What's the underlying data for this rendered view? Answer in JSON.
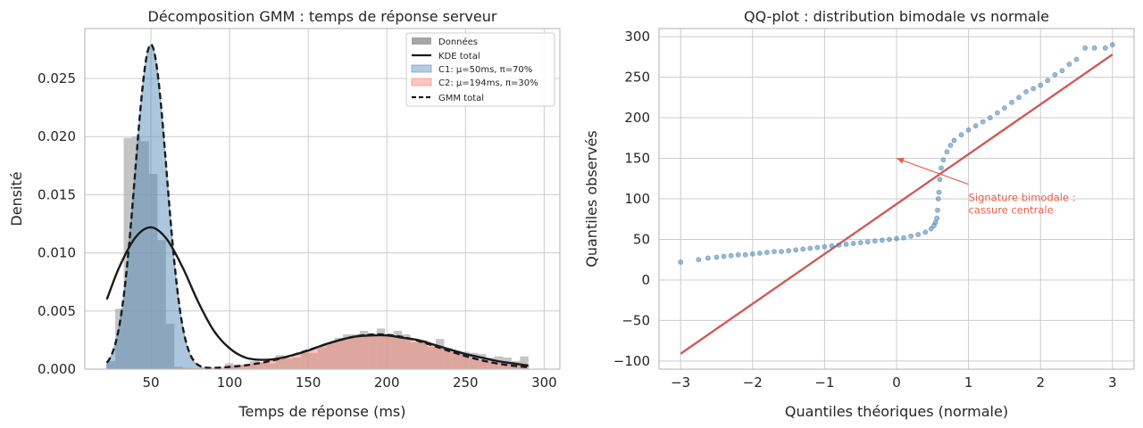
{
  "chart_data": [
    {
      "type": "histogram+line",
      "title": "Décomposition GMM : temps de réponse serveur",
      "xlabel": "Temps de réponse (ms)",
      "ylabel": "Densité",
      "xlim": [
        8,
        310
      ],
      "ylim": [
        0,
        0.0293
      ],
      "xticks": [
        50,
        100,
        150,
        200,
        250,
        300
      ],
      "yticks": [
        0.0,
        0.005,
        0.01,
        0.015,
        0.02,
        0.025
      ],
      "ytick_labels": [
        "0.000",
        "0.005",
        "0.010",
        "0.015",
        "0.020",
        "0.025"
      ],
      "legend": {
        "position": "upper right",
        "entries": [
          {
            "label": "Données",
            "kind": "patch",
            "color": "#a6a6a6"
          },
          {
            "label": "KDE total",
            "kind": "line",
            "color": "#1a1a1a"
          },
          {
            "label": "C1: μ=50ms, π=70%",
            "kind": "patch",
            "color": "#4682b4"
          },
          {
            "label": "C2: μ=194ms, π=30%",
            "kind": "patch",
            "color": "#fa8072"
          },
          {
            "label": "GMM total",
            "kind": "dashed",
            "color": "#1a1a1a"
          }
        ]
      },
      "histogram": {
        "bin_start": 22,
        "bin_width": 5.36,
        "color": "#a6a6a6",
        "values": [
          0.0007,
          0.0052,
          0.0199,
          0.02,
          0.0196,
          0.0168,
          0.0111,
          0.0039,
          0.0002,
          0.0001,
          0.0,
          0.0,
          0.0,
          0.0,
          0.0005,
          0.0004,
          0.0004,
          0.0007,
          0.0006,
          0.0005,
          0.0012,
          0.0009,
          0.001,
          0.0014,
          0.0014,
          0.0019,
          0.0022,
          0.0027,
          0.003,
          0.003,
          0.0033,
          0.003,
          0.0035,
          0.0029,
          0.0033,
          0.003,
          0.0023,
          0.0025,
          0.0019,
          0.0026,
          0.0018,
          0.0016,
          0.0015,
          0.0014,
          0.0013,
          0.001,
          0.0011,
          0.001,
          0.0007,
          0.0011
        ]
      },
      "components": [
        {
          "name": "C1: μ=50ms, π=70%",
          "mu": 50,
          "sigma": 10,
          "weight": 0.7,
          "color": "#4682b4"
        },
        {
          "name": "C2: μ=194ms, π=30%",
          "mu": 194,
          "sigma": 40,
          "weight": 0.3,
          "color": "#fa8072"
        }
      ],
      "kde": {
        "name": "KDE total",
        "color": "#1a1a1a",
        "x": [
          22,
          30,
          40,
          50,
          60,
          70,
          80,
          90,
          100,
          110,
          120,
          130,
          140,
          150,
          160,
          170,
          180,
          190,
          200,
          210,
          220,
          230,
          240,
          250,
          260,
          270,
          280,
          290
        ],
        "y": [
          0.006,
          0.0088,
          0.0113,
          0.0122,
          0.0112,
          0.0088,
          0.0058,
          0.0033,
          0.0018,
          0.001,
          0.0008,
          0.0009,
          0.0012,
          0.0016,
          0.0021,
          0.0025,
          0.0028,
          0.0029,
          0.0029,
          0.0027,
          0.0025,
          0.0021,
          0.0017,
          0.0013,
          0.001,
          0.0007,
          0.0005,
          0.0003
        ]
      },
      "gmm_total": {
        "name": "GMM total",
        "color": "#1a1a1a",
        "x_range": [
          22,
          290
        ]
      }
    },
    {
      "type": "scatter",
      "title": "QQ-plot : distribution bimodale vs normale",
      "xlabel": "Quantiles théoriques (normale)",
      "ylabel": "Quantiles observés",
      "xlim": [
        -3.3,
        3.3
      ],
      "ylim": [
        -110,
        310
      ],
      "xticks": [
        -3,
        -2,
        -1,
        0,
        1,
        2,
        3
      ],
      "xtick_labels": [
        "−3",
        "−2",
        "−1",
        "0",
        "1",
        "2",
        "3"
      ],
      "yticks": [
        -100,
        -50,
        0,
        50,
        100,
        150,
        200,
        250,
        300
      ],
      "ytick_labels": [
        "−100",
        "−50",
        "0",
        "50",
        "100",
        "150",
        "200",
        "250",
        "300"
      ],
      "reference_line": {
        "x": [
          -3,
          3
        ],
        "y": [
          -91,
          278
        ],
        "color": "#cd5c5c"
      },
      "points_color": "#4682b4",
      "points": [
        [
          -3.0,
          22
        ],
        [
          -2.75,
          25
        ],
        [
          -2.62,
          27
        ],
        [
          -2.5,
          28
        ],
        [
          -2.4,
          29
        ],
        [
          -2.3,
          30
        ],
        [
          -2.2,
          31
        ],
        [
          -2.1,
          31
        ],
        [
          -2.0,
          32
        ],
        [
          -1.9,
          33
        ],
        [
          -1.8,
          34
        ],
        [
          -1.7,
          35
        ],
        [
          -1.6,
          35
        ],
        [
          -1.5,
          36
        ],
        [
          -1.4,
          37
        ],
        [
          -1.3,
          38
        ],
        [
          -1.2,
          39
        ],
        [
          -1.1,
          40
        ],
        [
          -1.0,
          41
        ],
        [
          -0.9,
          42
        ],
        [
          -0.8,
          43
        ],
        [
          -0.7,
          44
        ],
        [
          -0.6,
          45
        ],
        [
          -0.5,
          46
        ],
        [
          -0.4,
          47
        ],
        [
          -0.3,
          48
        ],
        [
          -0.2,
          49
        ],
        [
          -0.1,
          50
        ],
        [
          0.0,
          51
        ],
        [
          0.1,
          52
        ],
        [
          0.2,
          54
        ],
        [
          0.3,
          56
        ],
        [
          0.4,
          59
        ],
        [
          0.48,
          63
        ],
        [
          0.52,
          67
        ],
        [
          0.54,
          71
        ],
        [
          0.56,
          76
        ],
        [
          0.57,
          86
        ],
        [
          0.58,
          100
        ],
        [
          0.59,
          108
        ],
        [
          0.6,
          124
        ],
        [
          0.62,
          138
        ],
        [
          0.65,
          148
        ],
        [
          0.7,
          158
        ],
        [
          0.75,
          166
        ],
        [
          0.8,
          172
        ],
        [
          0.9,
          179
        ],
        [
          1.0,
          185
        ],
        [
          1.1,
          190
        ],
        [
          1.2,
          195
        ],
        [
          1.3,
          200
        ],
        [
          1.4,
          206
        ],
        [
          1.5,
          212
        ],
        [
          1.6,
          219
        ],
        [
          1.7,
          225
        ],
        [
          1.8,
          232
        ],
        [
          1.9,
          236
        ],
        [
          2.0,
          240
        ],
        [
          2.1,
          246
        ],
        [
          2.2,
          253
        ],
        [
          2.3,
          258
        ],
        [
          2.4,
          266
        ],
        [
          2.5,
          272
        ],
        [
          2.62,
          286
        ],
        [
          2.75,
          286
        ],
        [
          2.9,
          286
        ],
        [
          3.0,
          290
        ]
      ],
      "annotation": {
        "text_lines": [
          "Signature bimodale :",
          "cassure centrale"
        ],
        "color": "#e8604c",
        "arrow_from": [
          1.0,
          118
        ],
        "arrow_to": [
          0.0,
          150
        ],
        "text_at": [
          1.0,
          97
        ]
      }
    }
  ]
}
